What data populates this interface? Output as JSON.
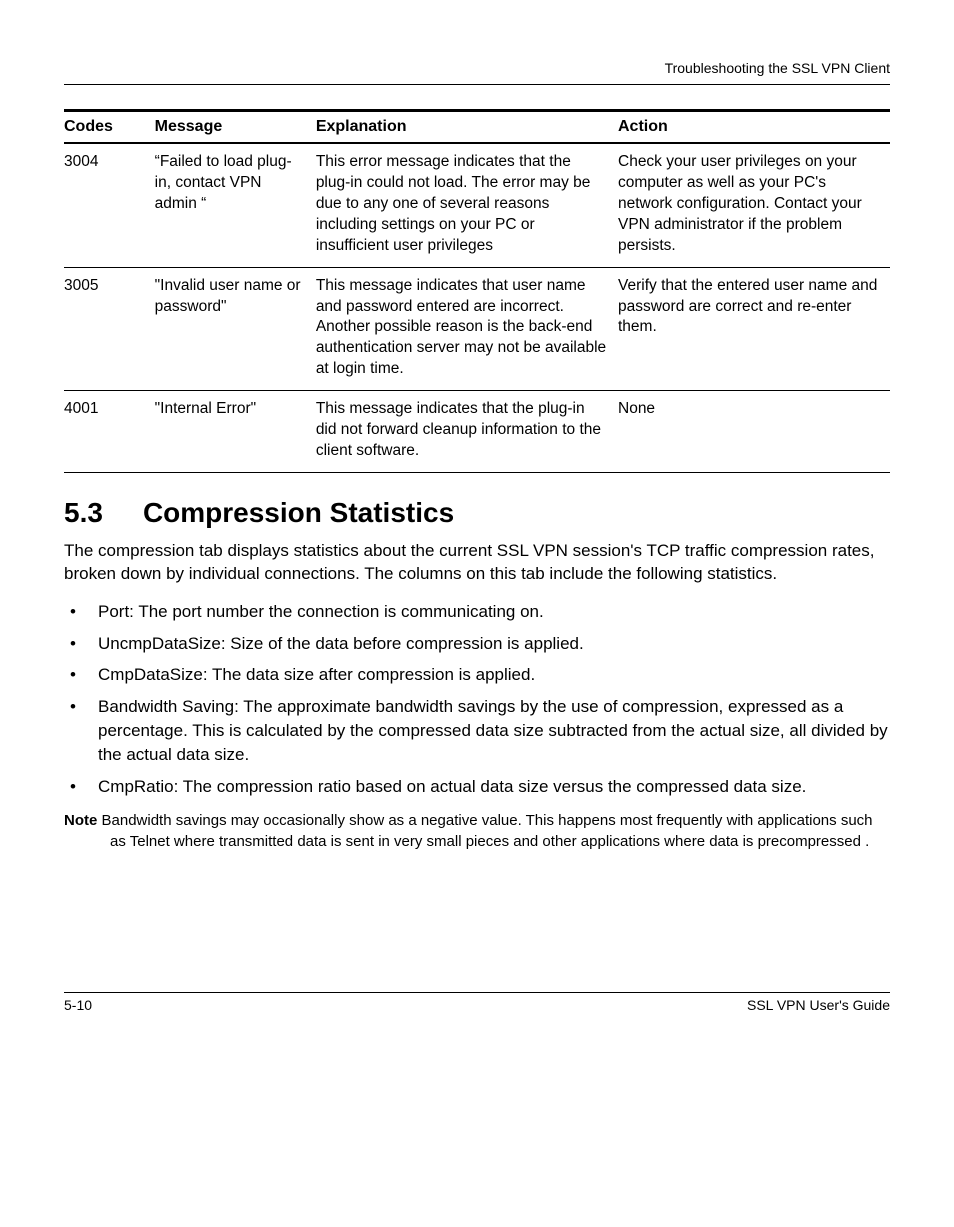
{
  "header": {
    "running_title": "Troubleshooting the SSL VPN Client"
  },
  "table": {
    "headers": {
      "codes": "Codes",
      "message": "Message",
      "explanation": "Explanation",
      "action": "Action"
    },
    "rows": [
      {
        "code": "3004",
        "message": "“Failed to load plug-in, contact VPN admin “",
        "explanation": "This error message indicates that the plug-in could not load. The error may be due to any one of several reasons including settings on your PC or insufficient user privileges",
        "action": "Check your user privileges on your computer as well as your PC's network configuration. Contact your VPN administrator if the problem persists."
      },
      {
        "code": "3005",
        "message": "\"Invalid user name or password\"",
        "explanation": "This message indicates that user name and password entered are incorrect. Another possible reason is the back-end authentication server may not be available at login time.",
        "action": "Verify that the entered user name and password are correct and re-enter them."
      },
      {
        "code": "4001",
        "message": "\"Internal Error\"",
        "explanation": "This message indicates that the plug-in did not forward cleanup information to the client software.",
        "action": "None"
      }
    ]
  },
  "section": {
    "number": "5.3",
    "title": "Compression Statistics",
    "intro": "The compression tab displays statistics about the current SSL VPN session's TCP traffic compression rates, broken down by individual connections. The columns on this tab include the following statistics.",
    "bullets": [
      "Port: The port number the connection is communicating on.",
      "UncmpDataSize: Size of the data before compression is applied.",
      "CmpDataSize: The data size after compression is applied.",
      "Bandwidth Saving: The approximate bandwidth savings by the use of compression, expressed as a percentage. This is calculated by the compressed data size subtracted from the actual size, all divided by the actual data size.",
      "CmpRatio: The compression ratio based on actual data size versus the compressed data size."
    ],
    "note_label": "Note",
    "note_text": "Bandwidth savings may occasionally show as a negative value. This happens most frequently with applications such as Telnet where transmitted data is sent in very small pieces and other applications where data is precompressed ."
  },
  "footer": {
    "page": "5-10",
    "doc": "SSL VPN User's Guide"
  }
}
